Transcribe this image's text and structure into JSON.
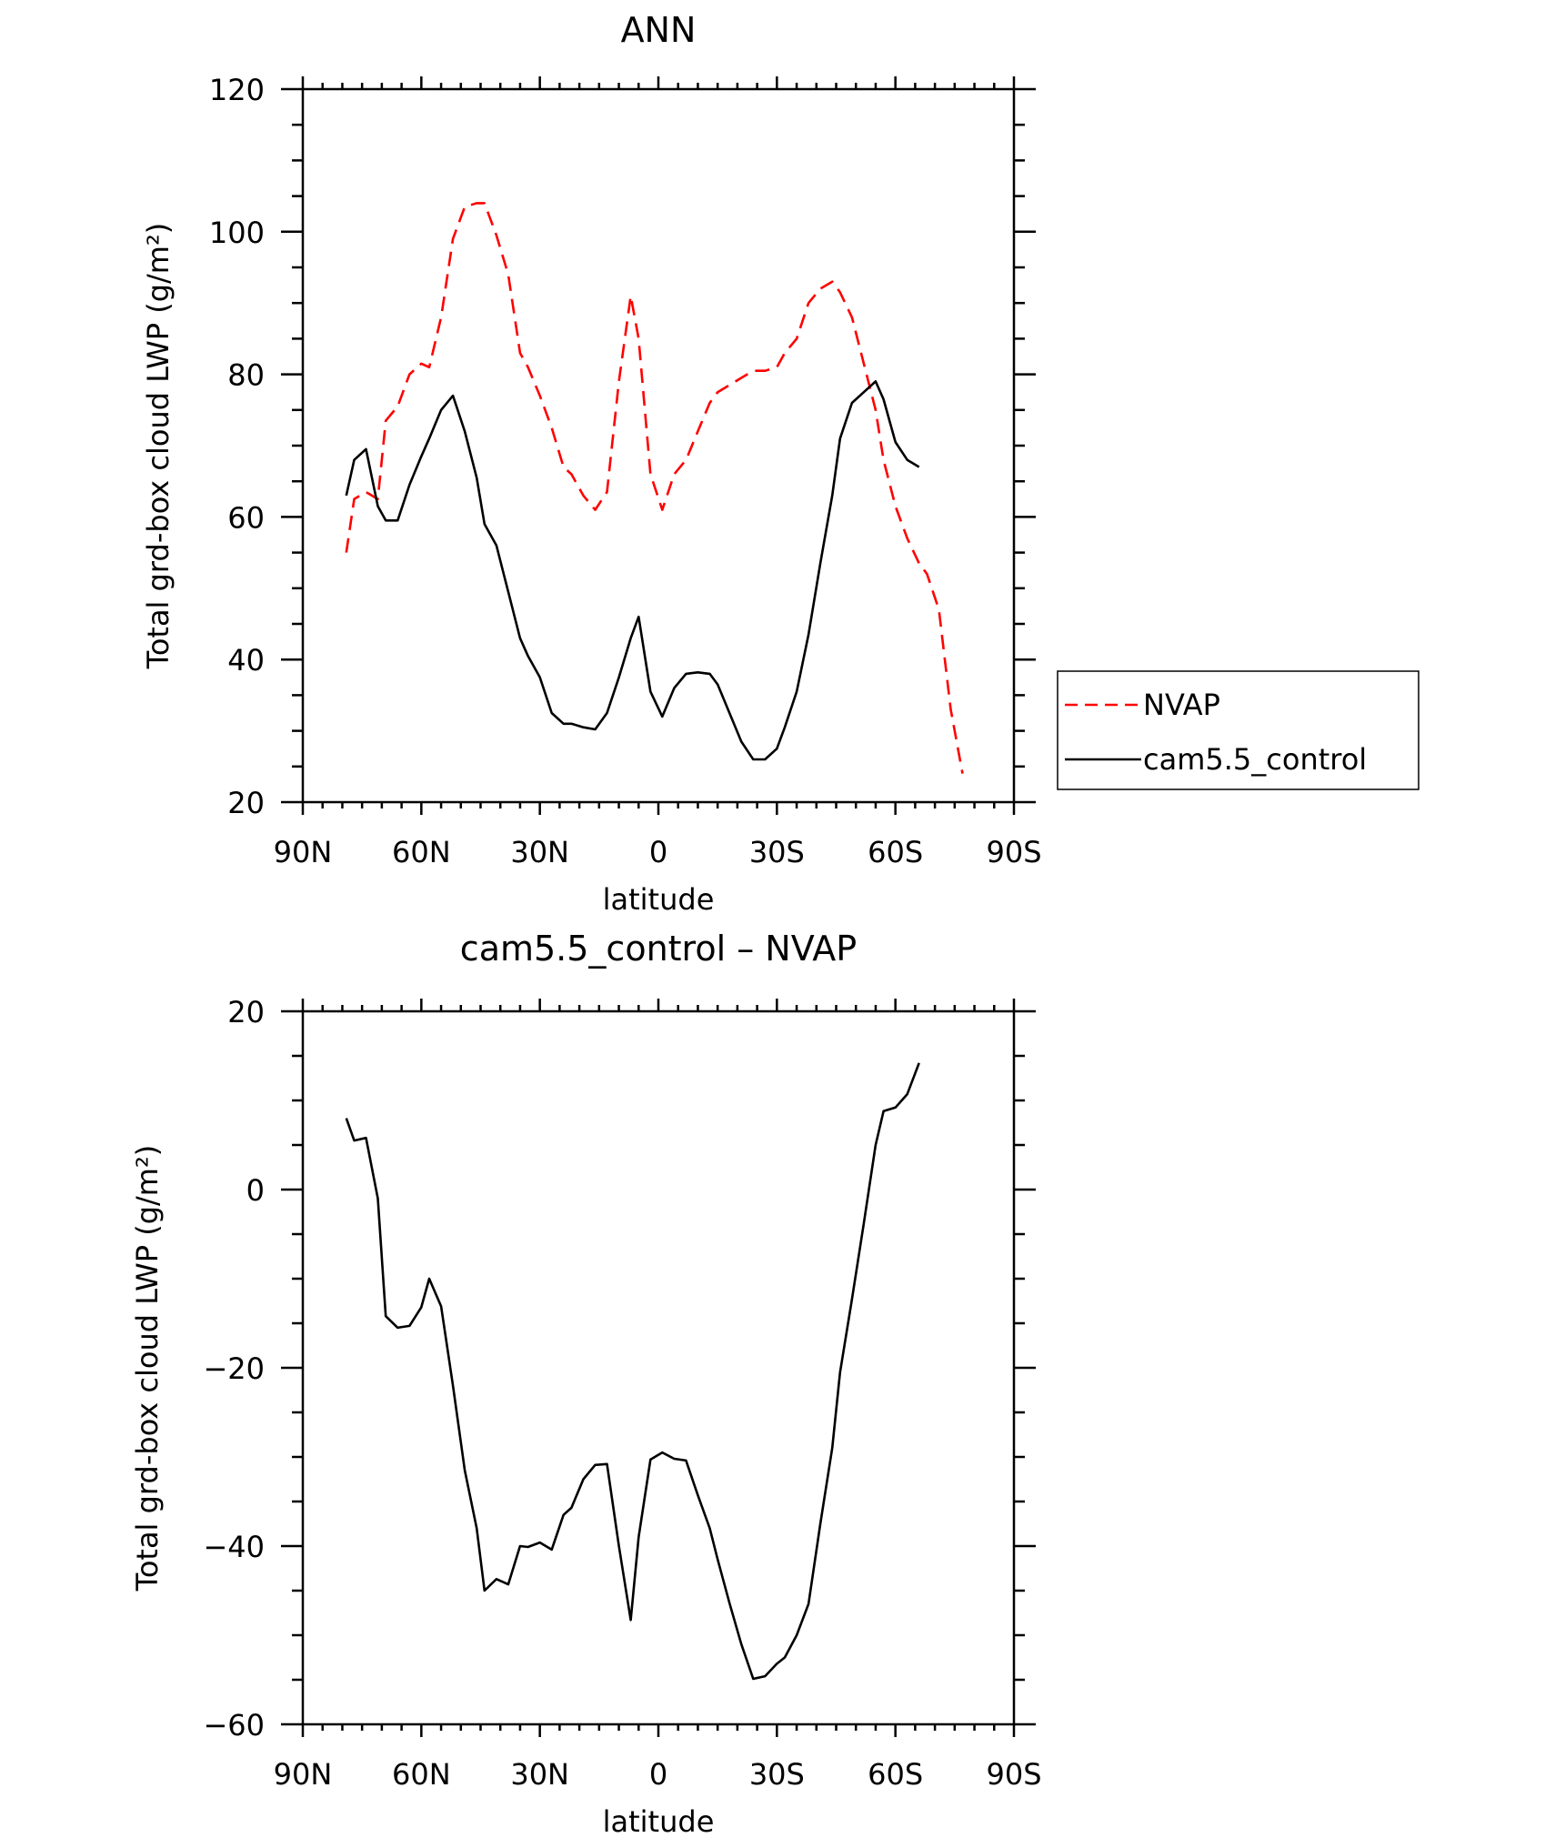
{
  "chart_data": [
    {
      "type": "line",
      "title": "ANN",
      "xlabel": "latitude",
      "ylabel": "Total grd-box cloud LWP (g/m²)",
      "xlim": [
        90,
        -90
      ],
      "ylim": [
        20,
        120
      ],
      "x_ticks": [
        90,
        60,
        30,
        0,
        -30,
        -60,
        -90
      ],
      "x_tick_labels": [
        "90N",
        "60N",
        "30N",
        "0",
        "30S",
        "60S",
        "90S"
      ],
      "y_ticks": [
        20,
        40,
        60,
        80,
        100,
        120
      ],
      "y_tick_labels": [
        "20",
        "40",
        "60",
        "80",
        "100",
        "120"
      ],
      "legend": {
        "position": "right",
        "entries": [
          "NVAP",
          "cam5.5_control"
        ]
      },
      "series": [
        {
          "name": "NVAP",
          "color": "#ff0000",
          "style": "dashed",
          "x": [
            79,
            77,
            74,
            71,
            69,
            66,
            63,
            60,
            58,
            55,
            52,
            49,
            46,
            44,
            41,
            38,
            35,
            33,
            30,
            27,
            24,
            22,
            19,
            16,
            13,
            10,
            7,
            5,
            2,
            -1,
            -4,
            -7,
            -10,
            -13,
            -15,
            -18,
            -21,
            -24,
            -27,
            -30,
            -32,
            -35,
            -38,
            -41,
            -44,
            -46,
            -49,
            -52,
            -55,
            -57,
            -60,
            -63,
            -66,
            -68,
            -71,
            -74,
            -77
          ],
          "y": [
            55,
            62.5,
            63.5,
            62.5,
            73.5,
            75.5,
            80,
            81.5,
            81,
            88,
            99,
            103.5,
            104,
            104,
            99.5,
            94,
            83,
            81,
            77,
            72.5,
            67,
            66,
            63,
            61,
            63.5,
            79,
            91,
            85,
            66,
            61,
            66,
            68,
            72,
            76,
            77.5,
            78.5,
            79.5,
            80.5,
            80.5,
            81,
            83,
            85,
            90,
            92,
            93,
            91.5,
            88,
            81.5,
            75,
            68,
            61.5,
            57,
            53.5,
            52,
            47,
            33,
            24
          ]
        },
        {
          "name": "cam5.5_control",
          "color": "#000000",
          "style": "solid",
          "x": [
            79,
            77,
            74,
            71,
            69,
            66,
            63,
            60,
            58,
            55,
            52,
            49,
            46,
            44,
            41,
            38,
            35,
            33,
            30,
            27,
            24,
            22,
            19,
            16,
            13,
            10,
            7,
            5,
            2,
            -1,
            -4,
            -7,
            -10,
            -13,
            -15,
            -18,
            -21,
            -24,
            -27,
            -30,
            -32,
            -35,
            -38,
            -41,
            -44,
            -46,
            -49,
            -52,
            -55,
            -57,
            -60,
            -63,
            -66
          ],
          "y": [
            63,
            68,
            69.5,
            61.5,
            59.5,
            59.5,
            64.5,
            68.5,
            71,
            75,
            77,
            72,
            65.5,
            59,
            56,
            49.5,
            43,
            40.5,
            37.5,
            32.5,
            31,
            31,
            30.5,
            30.2,
            32.5,
            37.5,
            43,
            46,
            35.5,
            32,
            36,
            38,
            38.2,
            38,
            36.5,
            32.5,
            28.5,
            26,
            26,
            27.5,
            30.5,
            35.5,
            43.5,
            53.5,
            63,
            71,
            76,
            77.5,
            79,
            76.5,
            70.5,
            68,
            67
          ]
        }
      ]
    },
    {
      "type": "line",
      "title": "cam5.5_control – NVAP",
      "xlabel": "latitude",
      "ylabel": "Total grd-box cloud LWP (g/m²)",
      "xlim": [
        90,
        -90
      ],
      "ylim": [
        -60,
        20
      ],
      "x_ticks": [
        90,
        60,
        30,
        0,
        -30,
        -60,
        -90
      ],
      "x_tick_labels": [
        "90N",
        "60N",
        "30N",
        "0",
        "30S",
        "60S",
        "90S"
      ],
      "y_ticks": [
        -60,
        -40,
        -20,
        0,
        20
      ],
      "y_tick_labels": [
        "−60",
        "−40",
        "−20",
        "0",
        "20"
      ],
      "series": [
        {
          "color": "#000000",
          "style": "solid",
          "x": [
            79,
            77,
            74,
            71,
            69,
            66,
            63,
            60,
            58,
            55,
            52,
            49,
            46,
            44,
            41,
            38,
            35,
            33,
            30,
            27,
            24,
            22,
            19,
            16,
            13,
            10,
            7,
            5,
            2,
            -1,
            -4,
            -7,
            -10,
            -13,
            -15,
            -18,
            -21,
            -24,
            -27,
            -30,
            -32,
            -35,
            -38,
            -41,
            -44,
            -46,
            -49,
            -52,
            -55,
            -57,
            -60,
            -63,
            -66
          ],
          "y": [
            8,
            5.5,
            5.8,
            -1,
            -14.2,
            -15.5,
            -15.3,
            -13.2,
            -10,
            -13.1,
            -22,
            -31.5,
            -38,
            -45,
            -43.7,
            -44.3,
            -40,
            -40.1,
            -39.6,
            -40.4,
            -36.5,
            -35.7,
            -32.5,
            -30.9,
            -30.8,
            -40,
            -48.3,
            -39,
            -30.3,
            -29.5,
            -30.2,
            -30.4,
            -34.3,
            -38,
            -41.5,
            -46.4,
            -51,
            -54.9,
            -54.6,
            -53.2,
            -52.5,
            -50,
            -46.5,
            -37.5,
            -29,
            -20.5,
            -12.3,
            -3.8,
            5,
            8.8,
            9.2,
            10.7,
            14.2
          ]
        }
      ]
    }
  ]
}
